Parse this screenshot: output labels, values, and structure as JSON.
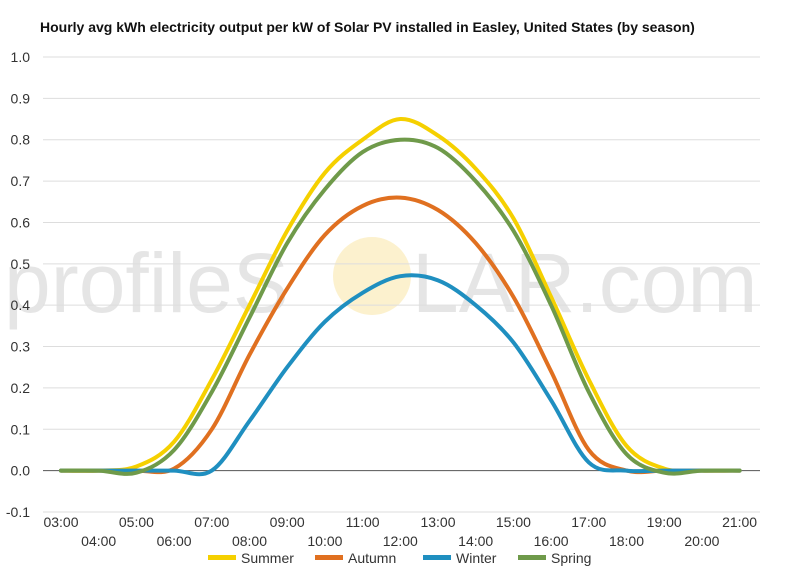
{
  "watermark": {
    "text_left": "profileS",
    "text_right": "LAR.com",
    "sun_color": "#f7d774"
  },
  "chart_data": {
    "type": "line",
    "title": "Hourly avg kWh electricity output per kW of Solar PV installed in Easley, United States (by season)",
    "xlabel": "",
    "ylabel": "",
    "ylim": [
      -0.1,
      1.0
    ],
    "yticks": [
      "-0.1",
      "0.0",
      "0.1",
      "0.2",
      "0.3",
      "0.4",
      "0.5",
      "0.6",
      "0.7",
      "0.8",
      "0.9",
      "1.0"
    ],
    "x": [
      "03:00",
      "04:00",
      "05:00",
      "06:00",
      "07:00",
      "08:00",
      "09:00",
      "10:00",
      "11:00",
      "12:00",
      "13:00",
      "14:00",
      "15:00",
      "16:00",
      "17:00",
      "18:00",
      "19:00",
      "20:00",
      "21:00"
    ],
    "grid": true,
    "legend": "bottom",
    "series": [
      {
        "name": "Summer",
        "color": "#f5d000",
        "values": [
          0,
          0,
          0.01,
          0.07,
          0.22,
          0.4,
          0.58,
          0.72,
          0.8,
          0.85,
          0.81,
          0.73,
          0.61,
          0.42,
          0.22,
          0.06,
          0.005,
          0,
          0
        ]
      },
      {
        "name": "Autumn",
        "color": "#e07020",
        "values": [
          0,
          0,
          0,
          0.005,
          0.1,
          0.28,
          0.44,
          0.57,
          0.64,
          0.66,
          0.63,
          0.55,
          0.42,
          0.24,
          0.05,
          0,
          0,
          0,
          0
        ]
      },
      {
        "name": "Winter",
        "color": "#1f8fc0",
        "values": [
          0,
          0,
          0,
          0,
          0,
          0.12,
          0.25,
          0.36,
          0.43,
          0.47,
          0.46,
          0.4,
          0.31,
          0.17,
          0.02,
          0,
          0,
          0,
          0
        ]
      },
      {
        "name": "Spring",
        "color": "#6f9a4a",
        "values": [
          0,
          0,
          -0.005,
          0.05,
          0.19,
          0.37,
          0.55,
          0.68,
          0.77,
          0.8,
          0.78,
          0.7,
          0.58,
          0.4,
          0.19,
          0.04,
          -0.005,
          0,
          0
        ]
      }
    ]
  }
}
